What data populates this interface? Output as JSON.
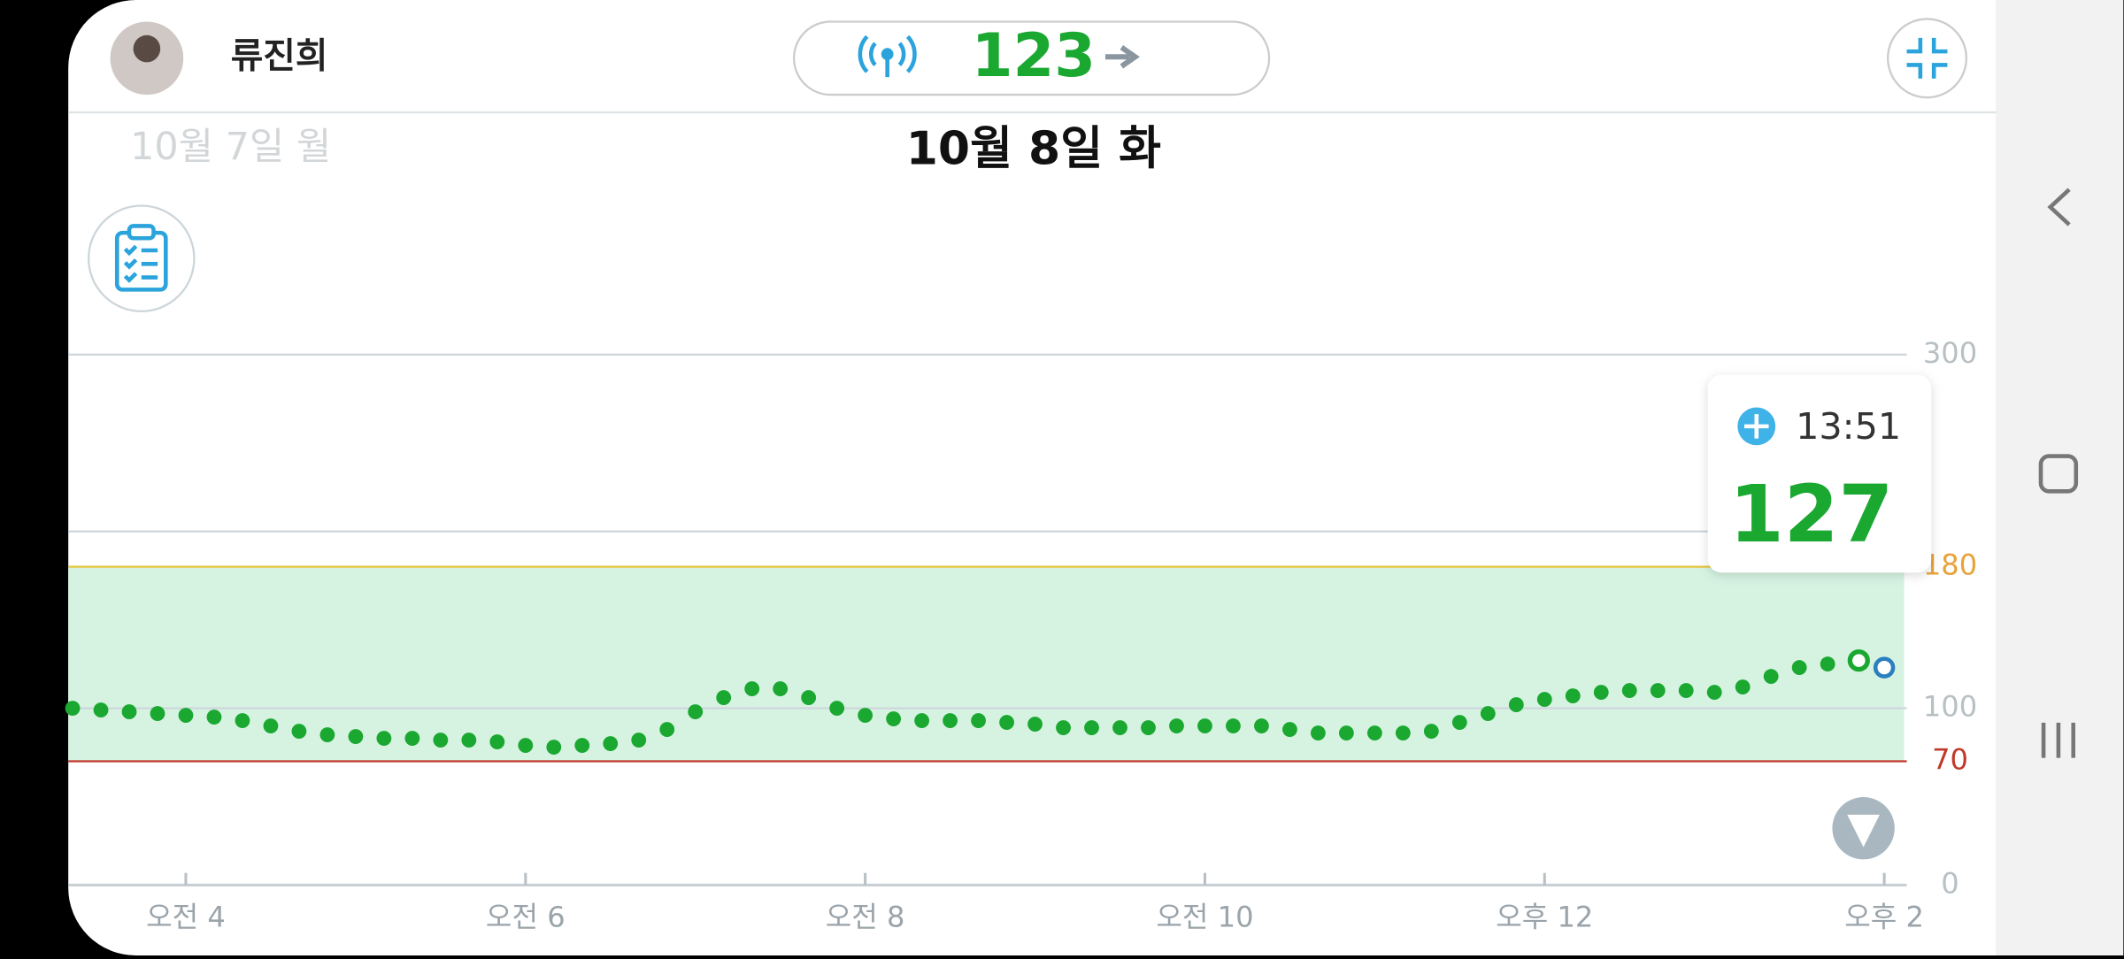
{
  "header": {
    "name": "류진희",
    "reading": 123,
    "prev_date": "10월 7일 월",
    "date": "10월 8일 화"
  },
  "chart_data": {
    "type": "scatter",
    "x": [
      200,
      210,
      220,
      230,
      240,
      250,
      260,
      270,
      280,
      290,
      300,
      310,
      320,
      330,
      340,
      350,
      360,
      370,
      380,
      390,
      400,
      410,
      420,
      430,
      440,
      450,
      460,
      470,
      480,
      490,
      500,
      510,
      520,
      530,
      540,
      550,
      560,
      570,
      580,
      590,
      600,
      610,
      620,
      630,
      640,
      650,
      660,
      670,
      680,
      690,
      700,
      710,
      720,
      730,
      740,
      750,
      760,
      770,
      780,
      790,
      800,
      810,
      820
    ],
    "values": [
      100,
      99,
      98,
      97,
      96,
      95,
      93,
      90,
      87,
      85,
      84,
      83,
      83,
      82,
      82,
      81,
      79,
      78,
      79,
      80,
      82,
      88,
      98,
      106,
      111,
      111,
      106,
      100,
      96,
      94,
      93,
      93,
      93,
      92,
      91,
      89,
      89,
      89,
      89,
      90,
      90,
      90,
      90,
      88,
      86,
      86,
      86,
      86,
      87,
      92,
      97,
      102,
      105,
      107,
      109,
      110,
      110,
      110,
      109,
      112,
      118,
      123,
      125
    ],
    "color": "#1aa831",
    "highlight": {
      "time": "13:51",
      "x": 831,
      "value": 127
    },
    "current": {
      "x": 840,
      "value": 123,
      "color": "#2b7fc0"
    },
    "xlim": [
      198,
      847
    ],
    "xticks": [
      {
        "value": 240,
        "label": "오전 4"
      },
      {
        "value": 360,
        "label": "오전 6"
      },
      {
        "value": 480,
        "label": "오전 8"
      },
      {
        "value": 600,
        "label": "오전 10"
      },
      {
        "value": 720,
        "label": "오후 12"
      },
      {
        "value": 840,
        "label": "오후 2"
      }
    ],
    "ylim": [
      0,
      300
    ],
    "yticks": [
      0,
      70,
      100,
      180,
      300
    ],
    "grid_lines": [
      100,
      200,
      300
    ],
    "target": {
      "low": 70,
      "high": 180,
      "low_color": "#c0392b",
      "high_color": "#e6c640",
      "fill": "#d6f3e1"
    }
  }
}
